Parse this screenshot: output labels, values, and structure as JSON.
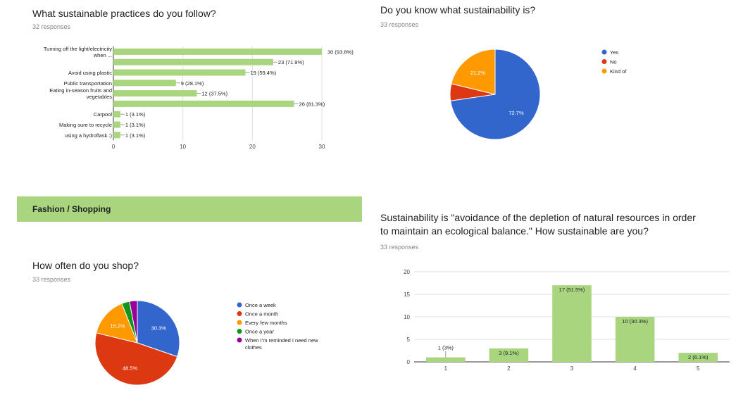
{
  "q1": {
    "title": "What sustainable practices do you follow?",
    "responses": "32 responses"
  },
  "q2": {
    "title": "Do you know what sustainability is?",
    "responses": "33 responses"
  },
  "section": {
    "title": "Fashion / Shopping"
  },
  "q3": {
    "title": "How often do you shop?",
    "responses": "33 responses"
  },
  "q4": {
    "title_line1": "Sustainability is \"avoidance of the depletion of natural resources in order",
    "title_line2": "to maintain an ecological balance.\" How sustainable are you?",
    "responses": "33 responses"
  },
  "colors": {
    "bar": "#a8d57e",
    "blue": "#3366cc",
    "red": "#dc3912",
    "orange": "#ff9900",
    "green": "#109618",
    "purple": "#990099"
  },
  "chart_data": [
    {
      "type": "bar",
      "orientation": "horizontal",
      "categories": [
        [
          "Turning off the light/electricity",
          "when ..."
        ],
        [
          ""
        ],
        [
          "Avoid using plastic"
        ],
        [
          "Public transportation"
        ],
        [
          "Eating in-season fruits and",
          "vegetables"
        ],
        [
          ""
        ],
        [
          "Carpool"
        ],
        [
          "Making sure to recycle"
        ],
        [
          "using a hydroflask :)"
        ]
      ],
      "values": [
        30,
        23,
        19,
        9,
        12,
        26,
        1,
        1,
        1
      ],
      "data_labels": [
        "30 (93.8%)",
        "23 (71.9%)",
        "19 (59.4%)",
        "9 (28.1%)",
        "12 (37.5%)",
        "26 (81.3%)",
        "1 (3.1%)",
        "1 (3.1%)",
        "1 (3.1%)"
      ],
      "xlim": [
        0,
        30
      ],
      "xticks": [
        0,
        10,
        20,
        30
      ],
      "grid": true
    },
    {
      "type": "pie",
      "labels": [
        "Yes",
        "No",
        "Kind of"
      ],
      "values": [
        72.7,
        6.1,
        21.2
      ],
      "slice_labels": [
        "72.7%",
        "",
        "21.2%"
      ],
      "colors": [
        "#3366cc",
        "#dc3912",
        "#ff9900"
      ],
      "legend": "right"
    },
    {
      "type": "pie",
      "labels": [
        "Once a week",
        "Once a month",
        "Every few months",
        "Once a year",
        "When I'm reminded I need new clothes"
      ],
      "legend_lines": [
        [
          "Once a week"
        ],
        [
          "Once a month"
        ],
        [
          "Every few months"
        ],
        [
          "Once a year"
        ],
        [
          "When I'm reminded I need new",
          "clothes"
        ]
      ],
      "values": [
        30.3,
        48.5,
        15.2,
        3.0,
        3.0
      ],
      "slice_labels": [
        "30.3%",
        "48.5%",
        "15.2%",
        "",
        ""
      ],
      "colors": [
        "#3366cc",
        "#dc3912",
        "#ff9900",
        "#109618",
        "#990099"
      ],
      "legend": "right"
    },
    {
      "type": "bar",
      "orientation": "vertical",
      "categories": [
        "1",
        "2",
        "3",
        "4",
        "5"
      ],
      "values": [
        1,
        3,
        17,
        10,
        2
      ],
      "data_labels": [
        "1 (3%)",
        "3 (9.1%)",
        "17 (51.5%)",
        "10 (30.3%)",
        "2 (6.1%)"
      ],
      "ylim": [
        0,
        20
      ],
      "yticks": [
        0,
        5,
        10,
        15,
        20
      ],
      "grid": true
    }
  ]
}
